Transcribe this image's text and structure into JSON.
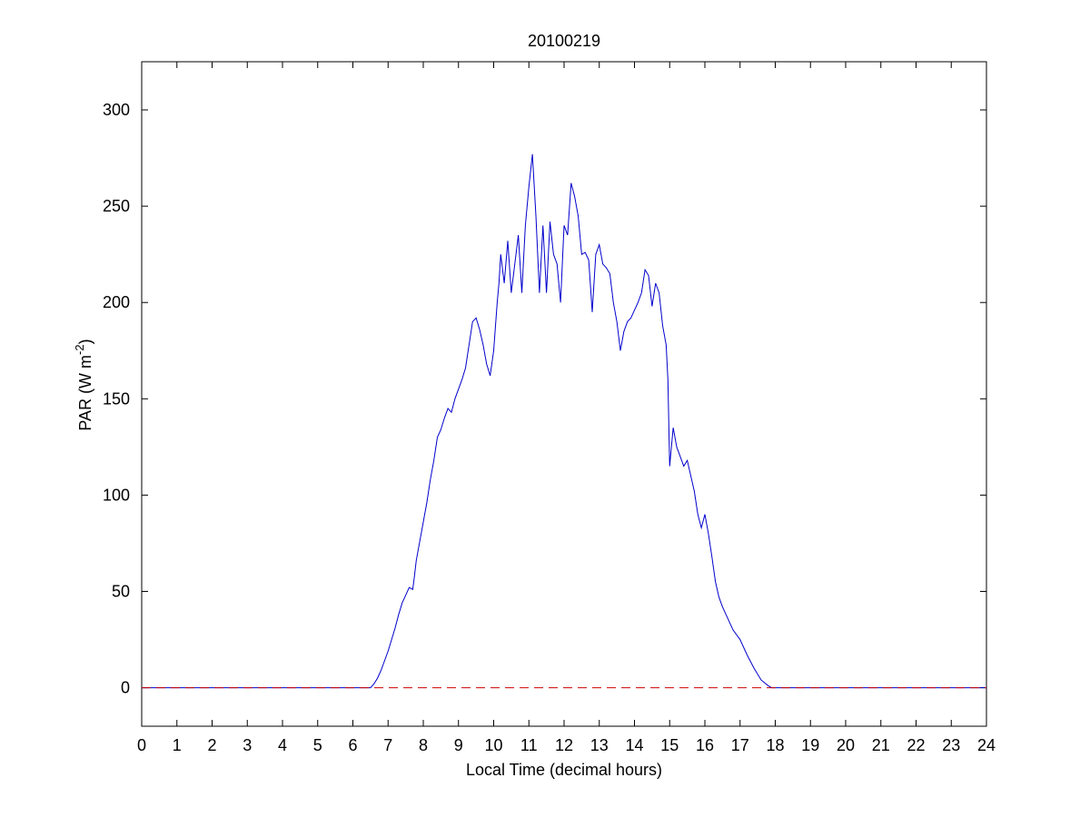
{
  "chart_data": {
    "type": "line",
    "title": "20100219",
    "xlabel": "Local Time (decimal hours)",
    "ylabel": {
      "prefix": "PAR (W m",
      "superscript": "-2",
      "suffix": ")"
    },
    "xlim": [
      0,
      24
    ],
    "ylim": [
      -20,
      325
    ],
    "xticks": [
      0,
      1,
      2,
      3,
      4,
      5,
      6,
      7,
      8,
      9,
      10,
      11,
      12,
      13,
      14,
      15,
      16,
      17,
      18,
      19,
      20,
      21,
      22,
      23,
      24
    ],
    "yticks": [
      0,
      50,
      100,
      150,
      200,
      250,
      300
    ],
    "grid": false,
    "legend": "none",
    "colors": {
      "series": "#0000cc",
      "zero_line": "#cc0000",
      "axes": "#000000",
      "background": "#ffffff"
    },
    "series": [
      {
        "style": "solid",
        "x": [
          0,
          6.5,
          6.6,
          6.7,
          6.8,
          6.9,
          7.0,
          7.1,
          7.2,
          7.3,
          7.4,
          7.5,
          7.6,
          7.7,
          7.75,
          7.8,
          7.9,
          8.0,
          8.1,
          8.2,
          8.3,
          8.4,
          8.5,
          8.6,
          8.7,
          8.8,
          8.9,
          9.0,
          9.1,
          9.2,
          9.3,
          9.4,
          9.5,
          9.6,
          9.7,
          9.8,
          9.9,
          10.0,
          10.1,
          10.15,
          10.2,
          10.3,
          10.4,
          10.5,
          10.6,
          10.7,
          10.8,
          10.9,
          11.0,
          11.1,
          11.2,
          11.3,
          11.4,
          11.5,
          11.6,
          11.7,
          11.8,
          11.9,
          12.0,
          12.1,
          12.2,
          12.3,
          12.4,
          12.5,
          12.6,
          12.7,
          12.8,
          12.9,
          13.0,
          13.1,
          13.2,
          13.3,
          13.4,
          13.5,
          13.6,
          13.7,
          13.8,
          13.9,
          14.0,
          14.1,
          14.2,
          14.3,
          14.4,
          14.5,
          14.6,
          14.7,
          14.8,
          14.9,
          14.95,
          15.0,
          15.1,
          15.2,
          15.3,
          15.4,
          15.5,
          15.6,
          15.7,
          15.8,
          15.9,
          16.0,
          16.1,
          16.2,
          16.3,
          16.4,
          16.5,
          16.6,
          16.8,
          17.0,
          17.2,
          17.4,
          17.6,
          17.8,
          17.9,
          18.0,
          24
        ],
        "y": [
          0,
          0,
          2,
          5,
          9,
          14,
          19,
          25,
          31,
          38,
          44,
          48,
          52,
          51,
          58,
          66,
          76,
          86,
          96,
          108,
          118,
          130,
          134,
          140,
          145,
          143,
          150,
          155,
          160,
          166,
          178,
          190,
          192,
          186,
          178,
          168,
          162,
          175,
          200,
          210,
          225,
          210,
          232,
          205,
          220,
          235,
          205,
          240,
          260,
          277,
          245,
          205,
          240,
          205,
          242,
          225,
          220,
          200,
          240,
          235,
          262,
          255,
          245,
          225,
          226,
          222,
          195,
          225,
          230,
          220,
          218,
          215,
          200,
          190,
          175,
          185,
          190,
          192,
          196,
          200,
          205,
          217,
          214,
          198,
          210,
          205,
          188,
          178,
          160,
          115,
          135,
          125,
          120,
          115,
          118,
          110,
          102,
          90,
          83,
          90,
          80,
          68,
          55,
          47,
          42,
          38,
          30,
          25,
          17,
          10,
          4,
          1,
          0,
          0,
          0
        ]
      },
      {
        "style": "dashed",
        "x": [
          0,
          24
        ],
        "y": [
          0,
          0
        ]
      }
    ]
  }
}
